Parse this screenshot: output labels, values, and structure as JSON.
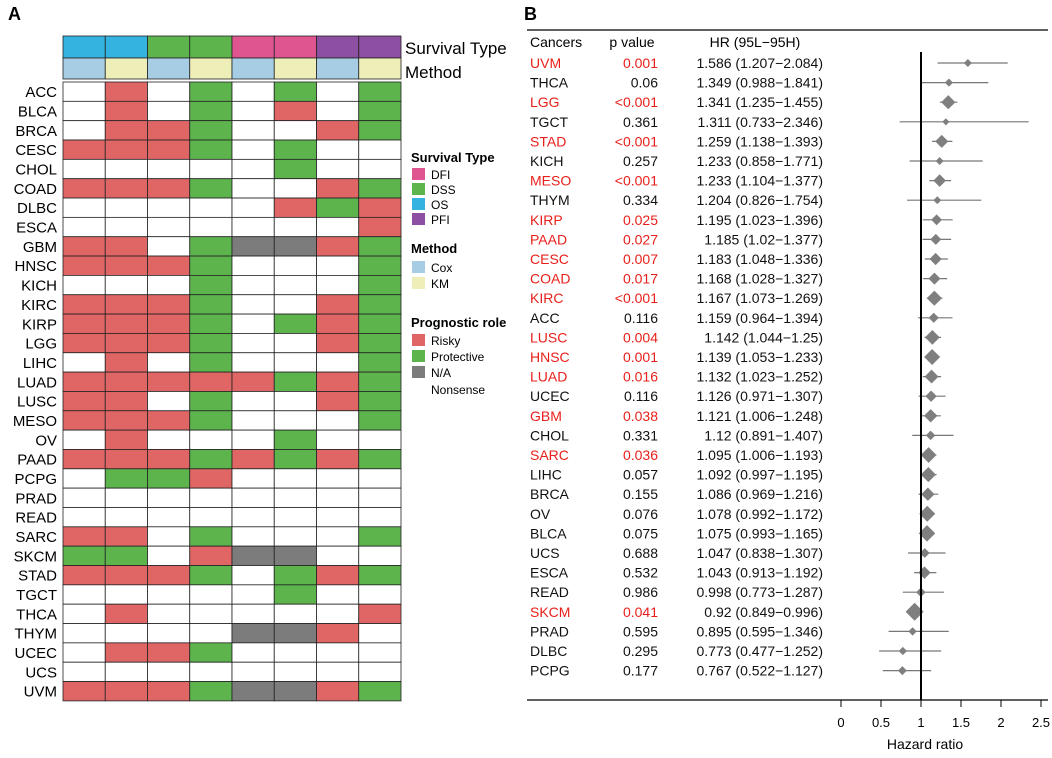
{
  "panel_a": {
    "label": "A",
    "title_survival_type": "Survival Type",
    "title_method": "Method",
    "cancers": [
      "ACC",
      "BLCA",
      "BRCA",
      "CESC",
      "CHOL",
      "COAD",
      "DLBC",
      "ESCA",
      "GBM",
      "HNSC",
      "KICH",
      "KIRC",
      "KIRP",
      "LGG",
      "LIHC",
      "LUAD",
      "LUSC",
      "MESO",
      "OV",
      "PAAD",
      "PCPG",
      "PRAD",
      "READ",
      "SARC",
      "SKCM",
      "STAD",
      "TGCT",
      "THCA",
      "THYM",
      "UCEC",
      "UCS",
      "UVM"
    ],
    "survival_types": [
      "OS",
      "OS",
      "DSS",
      "DSS",
      "DFI",
      "DFI",
      "PFI",
      "PFI"
    ],
    "methods": [
      "Cox",
      "KM",
      "Cox",
      "KM",
      "Cox",
      "KM",
      "Cox",
      "KM"
    ],
    "matrix": [
      "WRWGWGWG",
      "WRWGWRWG",
      "WRRGWWRG",
      "RRRGWGWW",
      "WWWWWGWW",
      "RRRGWWRG",
      "WWWWWRGR",
      "WWWWWWWR",
      "RRWGNNRG",
      "RRRGWWWG",
      "WWWGWWWG",
      "RRRGWWRG",
      "RRRGWGRG",
      "RRRGWWRG",
      "WRWGWWWG",
      "RRRRRGRG",
      "RRWGWWRG",
      "RRRGWWWG",
      "WRWWWGWW",
      "RRRGRGRG",
      "WGGRWWWW",
      "WWWWWWWW",
      "WWWWWWWW",
      "RRWGWWWG",
      "GGWRNNWW",
      "RRRGWGRG",
      "WWWWWGWW",
      "WRWWWWWR",
      "WWWWNNRW",
      "WRRGWWWW",
      "WWWWWWWW",
      "RRRGNNRG"
    ],
    "legend": {
      "survival_title": "Survival Type",
      "survival_items": [
        {
          "label": "DFI",
          "color": "#de5590"
        },
        {
          "label": "DSS",
          "color": "#5db44d"
        },
        {
          "label": "OS",
          "color": "#35b3e0"
        },
        {
          "label": "PFI",
          "color": "#8d4fa2"
        }
      ],
      "method_title": "Method",
      "method_items": [
        {
          "label": "Cox",
          "color": "#a6cde4"
        },
        {
          "label": "KM",
          "color": "#eeeeb9"
        }
      ],
      "role_title": "Prognostic role",
      "role_items": [
        {
          "label": "Risky",
          "color": "#e06666"
        },
        {
          "label": "Protective",
          "color": "#5db44d"
        },
        {
          "label": "N/A",
          "color": "#7c7c7c"
        }
      ],
      "role_extra": "Nonsense"
    },
    "colors": {
      "R": "#e06666",
      "G": "#5db44d",
      "N": "#7c7c7c",
      "W": "#ffffff"
    }
  },
  "panel_b": {
    "label": "B",
    "headers": {
      "cancer": "Cancers",
      "pvalue": "p value",
      "hr": "HR (95L−95H)"
    },
    "significant_color": "#e8201b"
  },
  "chart_data": {
    "type": "forest",
    "xlabel": "Hazard ratio",
    "xlim": [
      0,
      2.5
    ],
    "xticks": [
      "0",
      "0.5",
      "1",
      "1.5",
      "2",
      "2.5"
    ],
    "reference_line": 1,
    "rows": [
      {
        "cancer": "UVM",
        "p": "0.001",
        "hr_text": "1.586 (1.207−2.084)",
        "hr": 1.586,
        "lo": 1.207,
        "hi": 2.084,
        "sig": true
      },
      {
        "cancer": "THCA",
        "p": "0.06",
        "hr_text": "1.349 (0.988−1.841)",
        "hr": 1.349,
        "lo": 0.988,
        "hi": 1.841,
        "sig": false
      },
      {
        "cancer": "LGG",
        "p": "<0.001",
        "hr_text": "1.341 (1.235−1.455)",
        "hr": 1.341,
        "lo": 1.235,
        "hi": 1.455,
        "sig": true
      },
      {
        "cancer": "TGCT",
        "p": "0.361",
        "hr_text": "1.311 (0.733−2.346)",
        "hr": 1.311,
        "lo": 0.733,
        "hi": 2.346,
        "sig": false
      },
      {
        "cancer": "STAD",
        "p": "<0.001",
        "hr_text": "1.259 (1.138−1.393)",
        "hr": 1.259,
        "lo": 1.138,
        "hi": 1.393,
        "sig": true
      },
      {
        "cancer": "KICH",
        "p": "0.257",
        "hr_text": "1.233 (0.858−1.771)",
        "hr": 1.233,
        "lo": 0.858,
        "hi": 1.771,
        "sig": false
      },
      {
        "cancer": "MESO",
        "p": "<0.001",
        "hr_text": "1.233 (1.104−1.377)",
        "hr": 1.233,
        "lo": 1.104,
        "hi": 1.377,
        "sig": true
      },
      {
        "cancer": "THYM",
        "p": "0.334",
        "hr_text": "1.204 (0.826−1.754)",
        "hr": 1.204,
        "lo": 0.826,
        "hi": 1.754,
        "sig": false
      },
      {
        "cancer": "KIRP",
        "p": "0.025",
        "hr_text": "1.195 (1.023−1.396)",
        "hr": 1.195,
        "lo": 1.023,
        "hi": 1.396,
        "sig": true
      },
      {
        "cancer": "PAAD",
        "p": "0.027",
        "hr_text": "1.185 (1.02−1.377)",
        "hr": 1.185,
        "lo": 1.02,
        "hi": 1.377,
        "sig": true
      },
      {
        "cancer": "CESC",
        "p": "0.007",
        "hr_text": "1.183 (1.048−1.336)",
        "hr": 1.183,
        "lo": 1.048,
        "hi": 1.336,
        "sig": true
      },
      {
        "cancer": "COAD",
        "p": "0.017",
        "hr_text": "1.168 (1.028−1.327)",
        "hr": 1.168,
        "lo": 1.028,
        "hi": 1.327,
        "sig": true
      },
      {
        "cancer": "KIRC",
        "p": "<0.001",
        "hr_text": "1.167 (1.073−1.269)",
        "hr": 1.167,
        "lo": 1.073,
        "hi": 1.269,
        "sig": true
      },
      {
        "cancer": "ACC",
        "p": "0.116",
        "hr_text": "1.159 (0.964−1.394)",
        "hr": 1.159,
        "lo": 0.964,
        "hi": 1.394,
        "sig": false
      },
      {
        "cancer": "LUSC",
        "p": "0.004",
        "hr_text": "1.142 (1.044−1.25)",
        "hr": 1.142,
        "lo": 1.044,
        "hi": 1.25,
        "sig": true
      },
      {
        "cancer": "HNSC",
        "p": "0.001",
        "hr_text": "1.139 (1.053−1.233)",
        "hr": 1.139,
        "lo": 1.053,
        "hi": 1.233,
        "sig": true
      },
      {
        "cancer": "LUAD",
        "p": "0.016",
        "hr_text": "1.132 (1.023−1.252)",
        "hr": 1.132,
        "lo": 1.023,
        "hi": 1.252,
        "sig": true
      },
      {
        "cancer": "UCEC",
        "p": "0.116",
        "hr_text": "1.126 (0.971−1.307)",
        "hr": 1.126,
        "lo": 0.971,
        "hi": 1.307,
        "sig": false
      },
      {
        "cancer": "GBM",
        "p": "0.038",
        "hr_text": "1.121 (1.006−1.248)",
        "hr": 1.121,
        "lo": 1.006,
        "hi": 1.248,
        "sig": true
      },
      {
        "cancer": "CHOL",
        "p": "0.331",
        "hr_text": "1.12 (0.891−1.407)",
        "hr": 1.12,
        "lo": 0.891,
        "hi": 1.407,
        "sig": false
      },
      {
        "cancer": "SARC",
        "p": "0.036",
        "hr_text": "1.095 (1.006−1.193)",
        "hr": 1.095,
        "lo": 1.006,
        "hi": 1.193,
        "sig": true
      },
      {
        "cancer": "LIHC",
        "p": "0.057",
        "hr_text": "1.092 (0.997−1.195)",
        "hr": 1.092,
        "lo": 0.997,
        "hi": 1.195,
        "sig": false
      },
      {
        "cancer": "BRCA",
        "p": "0.155",
        "hr_text": "1.086 (0.969−1.216)",
        "hr": 1.086,
        "lo": 0.969,
        "hi": 1.216,
        "sig": false
      },
      {
        "cancer": "OV",
        "p": "0.076",
        "hr_text": "1.078 (0.992−1.172)",
        "hr": 1.078,
        "lo": 0.992,
        "hi": 1.172,
        "sig": false
      },
      {
        "cancer": "BLCA",
        "p": "0.075",
        "hr_text": "1.075 (0.993−1.165)",
        "hr": 1.075,
        "lo": 0.993,
        "hi": 1.165,
        "sig": false
      },
      {
        "cancer": "UCS",
        "p": "0.688",
        "hr_text": "1.047 (0.838−1.307)",
        "hr": 1.047,
        "lo": 0.838,
        "hi": 1.307,
        "sig": false
      },
      {
        "cancer": "ESCA",
        "p": "0.532",
        "hr_text": "1.043 (0.913−1.192)",
        "hr": 1.043,
        "lo": 0.913,
        "hi": 1.192,
        "sig": false
      },
      {
        "cancer": "READ",
        "p": "0.986",
        "hr_text": "0.998 (0.773−1.287)",
        "hr": 0.998,
        "lo": 0.773,
        "hi": 1.287,
        "sig": false
      },
      {
        "cancer": "SKCM",
        "p": "0.041",
        "hr_text": "0.92 (0.849−0.996)",
        "hr": 0.92,
        "lo": 0.849,
        "hi": 0.996,
        "sig": true
      },
      {
        "cancer": "PRAD",
        "p": "0.595",
        "hr_text": "0.895 (0.595−1.346)",
        "hr": 0.895,
        "lo": 0.595,
        "hi": 1.346,
        "sig": false
      },
      {
        "cancer": "DLBC",
        "p": "0.295",
        "hr_text": "0.773 (0.477−1.252)",
        "hr": 0.773,
        "lo": 0.477,
        "hi": 1.252,
        "sig": false
      },
      {
        "cancer": "PCPG",
        "p": "0.177",
        "hr_text": "0.767 (0.522−1.127)",
        "hr": 0.767,
        "lo": 0.522,
        "hi": 1.127,
        "sig": false
      }
    ]
  }
}
